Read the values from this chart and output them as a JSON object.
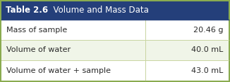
{
  "title_bold": "Table 2.6",
  "title_normal": "  Volume and Mass Data",
  "header_bg": "#243f7a",
  "header_text_color": "#ffffff",
  "rows": [
    {
      "label": "Mass of sample",
      "value": "20.46 g",
      "bg": "#ffffff"
    },
    {
      "label": "Volume of water",
      "value": "40.0 mL",
      "bg": "#f0f5e8"
    },
    {
      "label": "Volume of water + sample",
      "value": "43.0 mL",
      "bg": "#ffffff"
    }
  ],
  "outer_border_color": "#8aab50",
  "divider_color": "#c8d4a0",
  "row_text_color": "#2a2a2a",
  "label_font_size": 8.0,
  "value_font_size": 8.0,
  "header_font_size": 8.5,
  "col_split": 0.635
}
